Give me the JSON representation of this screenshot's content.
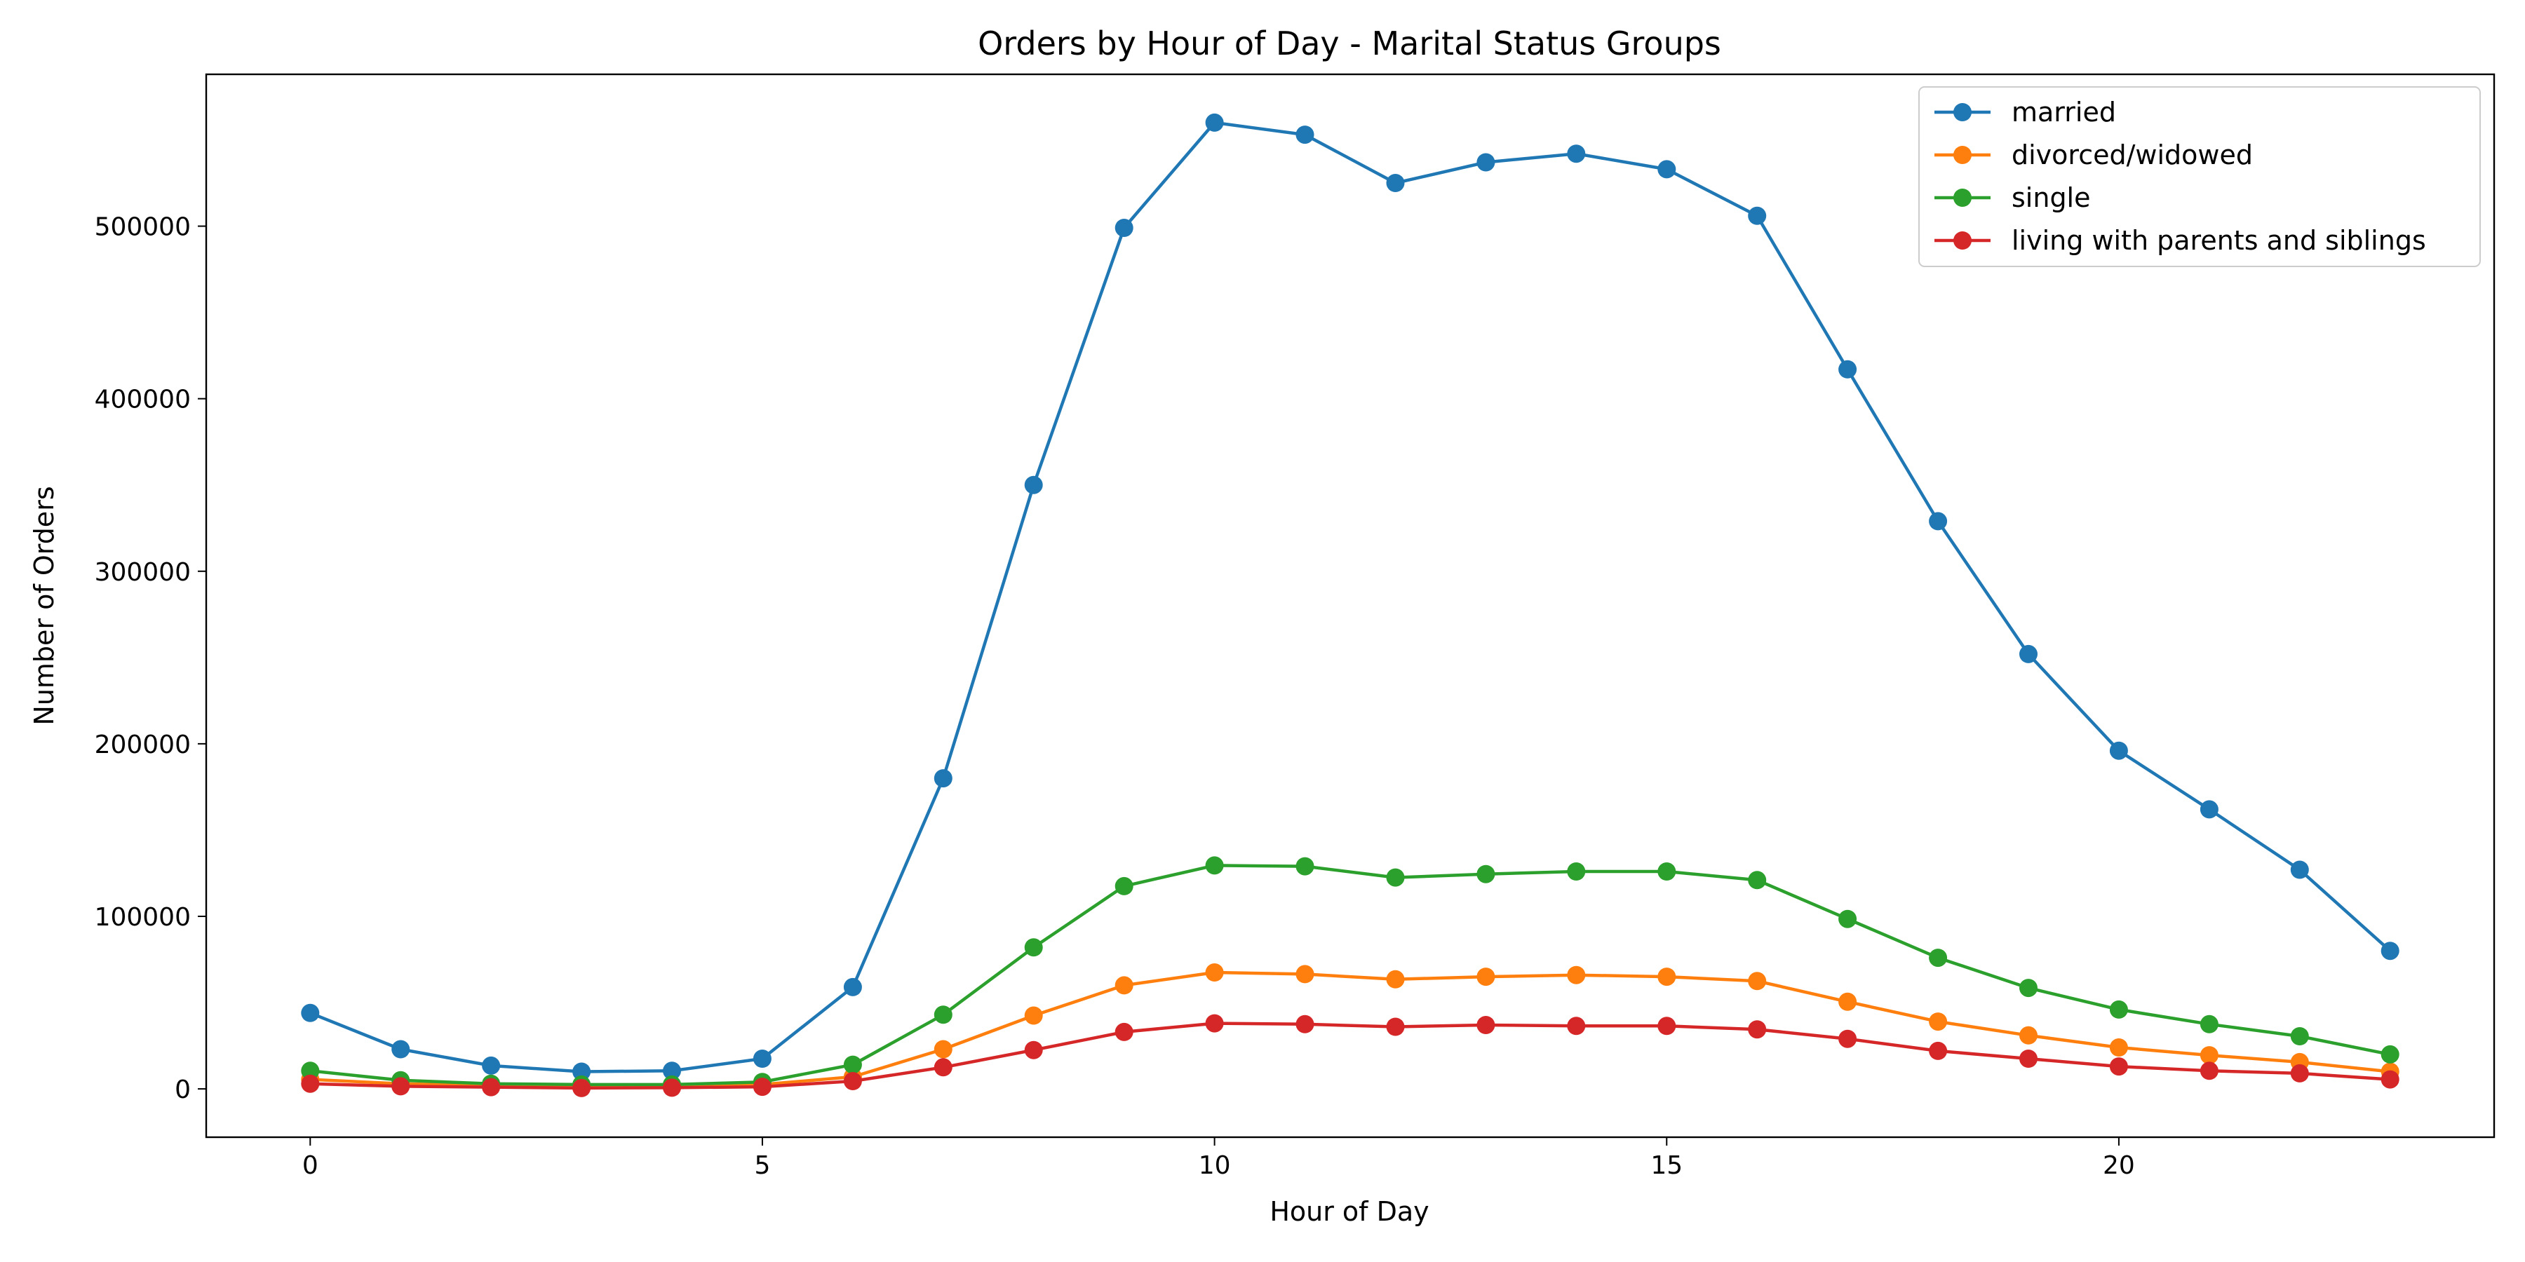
{
  "chart_data": {
    "type": "line",
    "title": "Orders by Hour of Day - Marital Status Groups",
    "xlabel": "Hour of Day",
    "ylabel": "Number of Orders",
    "x": [
      0,
      1,
      2,
      3,
      4,
      5,
      6,
      7,
      8,
      9,
      10,
      11,
      12,
      13,
      14,
      15,
      16,
      17,
      18,
      19,
      20,
      21,
      22,
      23
    ],
    "xlim": [
      -1.15,
      24.15
    ],
    "ylim": [
      -28000,
      588000
    ],
    "xticks": [
      0,
      5,
      10,
      15,
      20
    ],
    "yticks": [
      0,
      100000,
      200000,
      300000,
      400000,
      500000
    ],
    "grid": false,
    "legend_position": "top-right",
    "series": [
      {
        "name": "married",
        "color": "#1f77b4",
        "values": [
          44000,
          23000,
          13500,
          10000,
          10500,
          17500,
          59000,
          180000,
          350000,
          499000,
          560000,
          553000,
          525000,
          537000,
          542000,
          533000,
          506000,
          417000,
          329000,
          252000,
          196000,
          162000,
          127000,
          80000
        ]
      },
      {
        "name": "divorced/widowed",
        "color": "#ff7f0e",
        "values": [
          5500,
          3000,
          2000,
          1500,
          1500,
          2500,
          7000,
          23000,
          42500,
          60000,
          67500,
          66500,
          63500,
          65000,
          66000,
          65000,
          62500,
          50500,
          39000,
          31000,
          24000,
          19500,
          15500,
          10000
        ]
      },
      {
        "name": "single",
        "color": "#2ca02c",
        "values": [
          10500,
          5000,
          3000,
          2500,
          2500,
          4000,
          14000,
          43000,
          82000,
          117500,
          129500,
          129000,
          122500,
          124500,
          126000,
          126000,
          121000,
          98500,
          76000,
          58500,
          46000,
          37500,
          30500,
          20000
        ]
      },
      {
        "name": "living with parents and siblings",
        "color": "#d62728",
        "values": [
          3000,
          1500,
          1000,
          500,
          700,
          1200,
          4500,
          12500,
          22500,
          33000,
          38000,
          37500,
          36000,
          37000,
          36500,
          36500,
          34500,
          29000,
          22000,
          17500,
          13000,
          10500,
          9000,
          5500
        ]
      }
    ]
  }
}
